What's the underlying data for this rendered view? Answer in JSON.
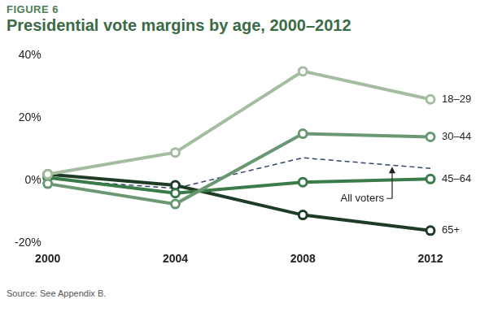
{
  "chart_data": {
    "type": "line",
    "figure_label": "FIGURE 6",
    "title": "Presidential vote margins by age, 2000–2012",
    "note": "Source: See Appendix B.",
    "categories": [
      "2000",
      "2004",
      "2008",
      "2012"
    ],
    "series": [
      {
        "name": "18–29",
        "color": "#a4bda0",
        "marker": "circle",
        "line_style": "solid",
        "values": [
          2,
          9,
          35,
          26
        ]
      },
      {
        "name": "30–44",
        "color": "#6a9872",
        "marker": "circle",
        "line_style": "solid",
        "values": [
          -1,
          -7.5,
          15,
          14
        ]
      },
      {
        "name": "45–64",
        "color": "#3b7a49",
        "marker": "circle",
        "line_style": "solid",
        "values": [
          1,
          -4,
          -0.5,
          0.5
        ]
      },
      {
        "name": "65+",
        "color": "#1e3b26",
        "marker": "circle",
        "line_style": "solid",
        "values": [
          2,
          -1.5,
          -11,
          -16
        ]
      },
      {
        "name": "All voters",
        "color": "#34456e",
        "marker": "none",
        "line_style": "dashed",
        "values": [
          0.5,
          -2.5,
          7.3,
          3.9
        ]
      }
    ],
    "annotations": [
      {
        "text": "All voters",
        "series": "All voters"
      }
    ],
    "ylim": [
      -20,
      40
    ],
    "yticks": [
      {
        "value": -20,
        "label": "-20%"
      },
      {
        "value": 0,
        "label": "0%"
      },
      {
        "value": 20,
        "label": "20%"
      },
      {
        "value": 40,
        "label": "40%"
      }
    ],
    "grid": false,
    "legend": "none"
  }
}
